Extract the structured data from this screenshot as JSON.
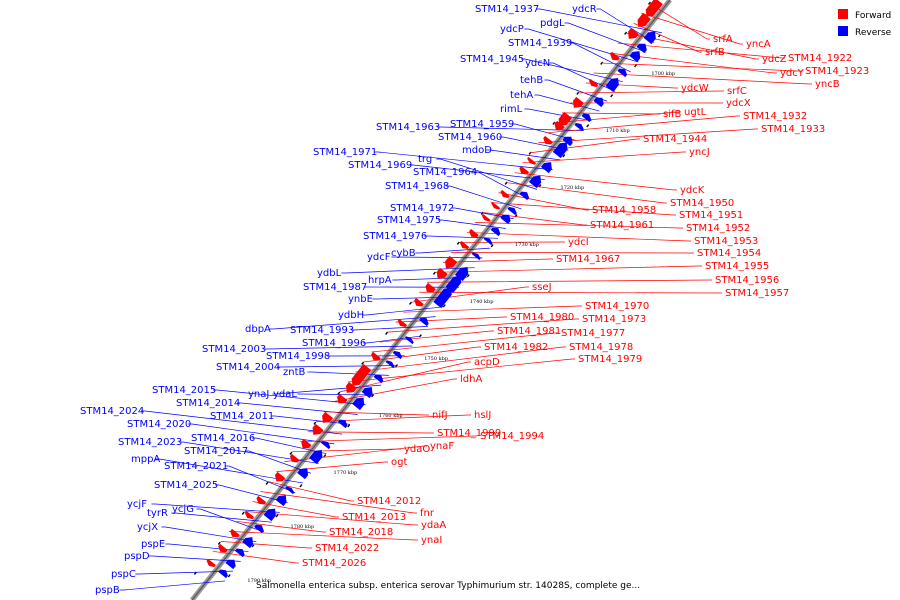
{
  "caption": "Salmonella enterica subsp. enterica serovar Typhimurium str. 14028S, complete ge...",
  "legend": [
    {
      "label": "Forward",
      "color": "#ff0000"
    },
    {
      "label": "Reverse",
      "color": "#0000ff"
    }
  ],
  "colors": {
    "forward": "#ff0000",
    "reverse": "#0000ff",
    "backbone": "#888888"
  },
  "kbp_marks": [
    "1700 kbp",
    "1710 kbp",
    "1720 kbp",
    "1730 kbp",
    "1740 kbp",
    "1750 kbp",
    "1760 kbp",
    "1770 kbp",
    "1780 kbp",
    "1790 kbp"
  ],
  "reverse_labels": [
    "STM14_1937",
    "ydcR",
    "pdgL",
    "ydcP",
    "STM14_1939",
    "STM14_1945",
    "ydcN",
    "tehB",
    "tehA",
    "rimL",
    "STM14_1963",
    "STM14_1959",
    "STM14_1960",
    "mdoD",
    "STM14_1971",
    "STM14_1969",
    "trg",
    "STM14_1964",
    "STM14_1968",
    "STM14_1972",
    "STM14_1975",
    "STM14_1976",
    "cybB",
    "ydcF",
    "ydbL",
    "hrpA",
    "STM14_1987",
    "ynbE",
    "ydbH",
    "dbpA",
    "STM14_1993",
    "STM14_1996",
    "STM14_2003",
    "STM14_1998",
    "STM14_2004",
    "zntB",
    "ynaJ",
    "ydaL",
    "STM14_2015",
    "STM14_2014",
    "STM14_2011",
    "STM14_2024",
    "STM14_2020",
    "STM14_2016",
    "STM14_2023",
    "STM14_2017",
    "mppA",
    "STM14_2021",
    "STM14_2025",
    "ycjF",
    "tyrR",
    "ycjG",
    "ycjX",
    "pspE",
    "pspD",
    "pspC",
    "pspB"
  ],
  "forward_labels": [
    "srfA",
    "yncA",
    "srfB",
    "ydcZ",
    "STM14_1922",
    "ydcY",
    "STM14_1923",
    "yncB",
    "ydcW",
    "srfC",
    "ydcX",
    "sifB",
    "ugtL",
    "STM14_1932",
    "STM14_1933",
    "STM14_1944",
    "yncJ",
    "ydcK",
    "STM14_1950",
    "STM14_1958",
    "STM14_1951",
    "STM14_1961",
    "STM14_1952",
    "STM14_1953",
    "ydcI",
    "STM14_1954",
    "STM14_1967",
    "STM14_1955",
    "STM14_1956",
    "STM14_1957",
    "sseJ",
    "STM14_1970",
    "STM14_1980",
    "STM14_1973",
    "STM14_1981",
    "STM14_1977",
    "STM14_1982",
    "STM14_1978",
    "STM14_1979",
    "acpD",
    "ldhA",
    "nifJ",
    "hslJ",
    "STM14_1999",
    "STM14_1994",
    "ydaO",
    "ynaF",
    "ogt",
    "STM14_2012",
    "fnr",
    "STM14_2013",
    "ydaA",
    "STM14_2018",
    "ynaI",
    "STM14_2022",
    "STM14_2026"
  ]
}
